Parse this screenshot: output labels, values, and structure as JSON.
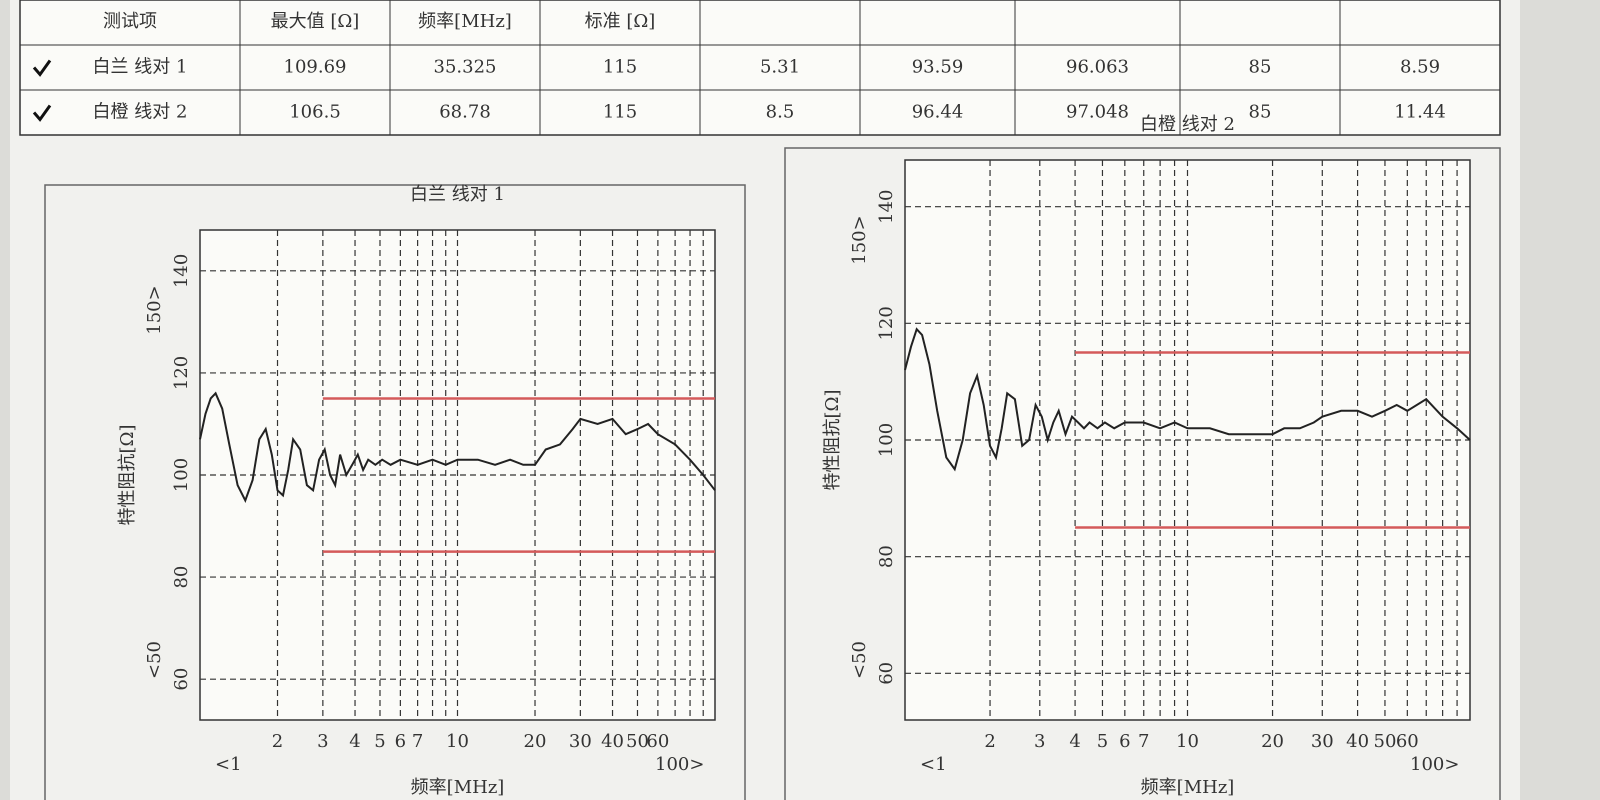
{
  "table": {
    "header": [
      "测试项",
      "最大值 [Ω]",
      "频率[MHz]",
      "标准 [Ω]",
      null,
      null,
      null,
      null,
      null
    ],
    "rows": [
      [
        "白兰 线对 1",
        "109.69",
        "35.325",
        "115",
        "5.31",
        "93.59",
        "96.063",
        "85",
        "8.59"
      ],
      [
        "白橙 线对 2",
        "106.5",
        "68.78",
        "115",
        "8.5",
        "96.44",
        "97.048",
        "85",
        "11.44"
      ]
    ]
  },
  "chart_data": [
    {
      "type": "line",
      "title": "白兰 线对 1",
      "y_label": "特性阻抗[Ω]",
      "x_label": "频率[MHz]",
      "log_x": true,
      "grid": true,
      "color": "#222222",
      "limit_color": "#d45a5a",
      "xlim": [
        1,
        100
      ],
      "ylim": [
        52,
        148
      ],
      "xticks": [
        2,
        3,
        4,
        5,
        6,
        7,
        10,
        20,
        30,
        40,
        50,
        60
      ],
      "xminor": [
        8,
        9,
        70,
        80,
        90
      ],
      "yticks": [
        60,
        80,
        100,
        120,
        140
      ],
      "x_range_labels": [
        "<1",
        "100>"
      ],
      "y_range_labels": [
        "<50",
        "150>"
      ],
      "x": [
        1,
        1.05,
        1.1,
        1.15,
        1.22,
        1.3,
        1.4,
        1.5,
        1.6,
        1.7,
        1.8,
        1.9,
        2.0,
        2.1,
        2.2,
        2.3,
        2.45,
        2.6,
        2.75,
        2.9,
        3.05,
        3.2,
        3.35,
        3.5,
        3.7,
        3.9,
        4.1,
        4.3,
        4.5,
        4.8,
        5.1,
        5.5,
        6,
        7,
        8,
        9,
        10,
        12,
        14,
        16,
        18,
        20,
        22,
        25,
        28,
        30,
        35,
        40,
        45,
        50,
        55,
        60,
        70,
        80,
        90,
        100
      ],
      "values": [
        107,
        112,
        115,
        116,
        113,
        106,
        98,
        95,
        99,
        107,
        109,
        104,
        97,
        96,
        101,
        107,
        105,
        98,
        97,
        103,
        105,
        100,
        98,
        104,
        100,
        102,
        104,
        101,
        103,
        102,
        103,
        102,
        103,
        102,
        103,
        102,
        103,
        103,
        102,
        103,
        102,
        102,
        105,
        106,
        109,
        111,
        110,
        111,
        108,
        109,
        110,
        108,
        106,
        103,
        100,
        97
      ],
      "limits": [
        {
          "x": [
            3,
            100
          ],
          "values": [
            115,
            115
          ]
        },
        {
          "x": [
            3,
            100
          ],
          "values": [
            85,
            85
          ]
        }
      ]
    },
    {
      "type": "line",
      "title": "白橙 线对 2",
      "y_label": "特性阻抗[Ω]",
      "x_label": "频率[MHz]",
      "log_x": true,
      "grid": true,
      "color": "#222222",
      "limit_color": "#d45a5a",
      "xlim": [
        1,
        100
      ],
      "ylim": [
        52,
        148
      ],
      "xticks": [
        2,
        3,
        4,
        5,
        6,
        7,
        10,
        20,
        30,
        40,
        50,
        60
      ],
      "xminor": [
        8,
        9,
        70,
        80,
        90
      ],
      "yticks": [
        60,
        80,
        100,
        120,
        140
      ],
      "x_range_labels": [
        "<1",
        "100>"
      ],
      "y_range_labels": [
        "<50",
        "150>"
      ],
      "x": [
        1,
        1.05,
        1.1,
        1.15,
        1.22,
        1.3,
        1.4,
        1.5,
        1.6,
        1.7,
        1.8,
        1.9,
        2.0,
        2.1,
        2.2,
        2.3,
        2.45,
        2.6,
        2.75,
        2.9,
        3.05,
        3.2,
        3.35,
        3.5,
        3.7,
        3.9,
        4.1,
        4.3,
        4.5,
        4.8,
        5.1,
        5.5,
        6,
        7,
        8,
        9,
        10,
        12,
        14,
        16,
        18,
        20,
        22,
        25,
        28,
        30,
        35,
        40,
        45,
        50,
        55,
        60,
        70,
        80,
        90,
        100
      ],
      "values": [
        112,
        116,
        119,
        118,
        113,
        105,
        97,
        95,
        100,
        108,
        111,
        106,
        99,
        97,
        102,
        108,
        107,
        99,
        100,
        106,
        104,
        100,
        103,
        105,
        101,
        104,
        103,
        102,
        103,
        102,
        103,
        102,
        103,
        103,
        102,
        103,
        102,
        102,
        101,
        101,
        101,
        101,
        102,
        102,
        103,
        104,
        105,
        105,
        104,
        105,
        106,
        105,
        107,
        104,
        102,
        100
      ],
      "limits": [
        {
          "x": [
            4,
            100
          ],
          "values": [
            115,
            115
          ]
        },
        {
          "x": [
            4,
            100
          ],
          "values": [
            85,
            85
          ]
        }
      ]
    }
  ]
}
